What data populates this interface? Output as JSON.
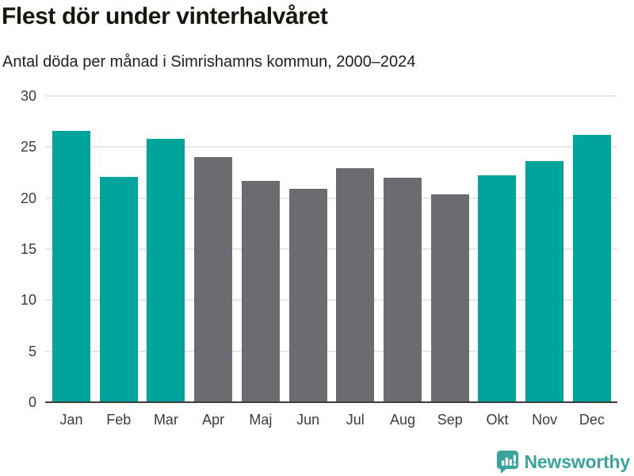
{
  "header": {
    "title": "Flest dör under vinterhalvåret",
    "subtitle": "Antal döda per månad i Simrishamns kommun, 2000–2024"
  },
  "chart_data": {
    "type": "bar",
    "title": "Flest dör under vinterhalvåret",
    "subtitle": "Antal döda per månad i Simrishamns kommun, 2000–2024",
    "categories": [
      "Jan",
      "Feb",
      "Mar",
      "Apr",
      "Maj",
      "Jun",
      "Jul",
      "Aug",
      "Sep",
      "Okt",
      "Nov",
      "Dec"
    ],
    "values": [
      26.6,
      22.1,
      25.8,
      24.0,
      21.7,
      20.9,
      22.9,
      22.0,
      20.4,
      22.2,
      23.6,
      26.2
    ],
    "highlighted": [
      true,
      true,
      true,
      false,
      false,
      false,
      false,
      false,
      false,
      true,
      true,
      true
    ],
    "xlabel": "",
    "ylabel": "",
    "ylim": [
      0,
      30
    ],
    "yticks": [
      0,
      5,
      10,
      15,
      20,
      25,
      30
    ],
    "grid": "horizontal",
    "legend": "none",
    "colors": {
      "highlight": "#00a49a",
      "default": "#6c6b70",
      "gridline": "#e8e8e8",
      "axis": "#3c3c3c"
    }
  },
  "footer": {
    "brand": "Newsworthy",
    "brand_color": "#3aa39c"
  }
}
